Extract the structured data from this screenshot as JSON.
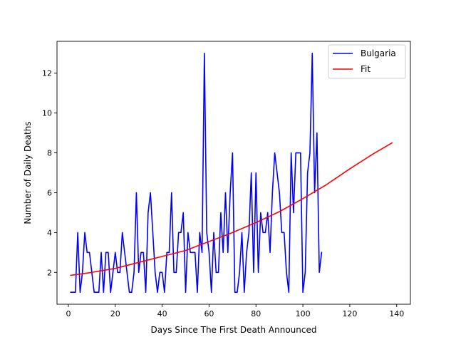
{
  "chart_data": {
    "type": "line",
    "title": "",
    "xlabel": "Days Since The First Death Announced",
    "ylabel": "Number of Daily Deaths",
    "xlim": [
      -4.85,
      145.85
    ],
    "ylim": [
      0.4,
      13.6
    ],
    "xticks": [
      0,
      20,
      40,
      60,
      80,
      100,
      120,
      140
    ],
    "yticks": [
      2,
      4,
      6,
      8,
      10,
      12
    ],
    "grid": false,
    "legend_position": "top-right",
    "series": [
      {
        "name": "Bulgaria",
        "color": "#0000ff",
        "x": [
          1,
          2,
          3,
          4,
          5,
          6,
          7,
          8,
          9,
          10,
          11,
          12,
          13,
          14,
          15,
          16,
          17,
          18,
          19,
          20,
          21,
          22,
          23,
          24,
          25,
          26,
          27,
          28,
          29,
          30,
          31,
          32,
          33,
          34,
          35,
          36,
          37,
          38,
          39,
          40,
          41,
          42,
          43,
          44,
          45,
          46,
          47,
          48,
          49,
          50,
          51,
          52,
          53,
          54,
          55,
          56,
          57,
          58,
          59,
          60,
          61,
          62,
          63,
          64,
          65,
          66,
          67,
          68,
          69,
          70,
          71,
          72,
          73,
          74,
          75,
          76,
          77,
          78,
          79,
          80,
          81,
          82,
          83,
          84,
          85,
          86,
          87,
          88,
          89,
          90,
          91,
          92,
          93,
          94,
          95,
          96,
          97,
          98,
          99,
          100,
          101,
          102,
          103,
          104,
          105,
          106,
          107,
          108
        ],
        "y": [
          1,
          1,
          1,
          4,
          1,
          2,
          4,
          3,
          3,
          2,
          1,
          1,
          1,
          3,
          1,
          3,
          3,
          1,
          2,
          3,
          2,
          2,
          4,
          3,
          2,
          1,
          1,
          2,
          6,
          2,
          3,
          3,
          1,
          5,
          6,
          4,
          2,
          1,
          2,
          2,
          1,
          3,
          3,
          6,
          2,
          2,
          4,
          4,
          5,
          1,
          4,
          3,
          3,
          3,
          1,
          4,
          3,
          13,
          4,
          3,
          1,
          4,
          2,
          2,
          5,
          3,
          6,
          3,
          6,
          8,
          1,
          1,
          2,
          4,
          1,
          3,
          4,
          7,
          2,
          7,
          2,
          5,
          4,
          4,
          5,
          3,
          6,
          8,
          7,
          6,
          4,
          4,
          2,
          1,
          8,
          5,
          8,
          8,
          8,
          1,
          2,
          7,
          8,
          13,
          6,
          9,
          2,
          3
        ]
      },
      {
        "name": "Fit",
        "color": "#ff0000",
        "model": "exponential",
        "x": [
          1,
          10,
          20,
          30,
          40,
          50,
          60,
          70,
          80,
          90,
          100,
          110,
          120,
          130,
          138
        ],
        "y": [
          1.85,
          2.0,
          2.2,
          2.5,
          2.8,
          3.1,
          3.55,
          4.0,
          4.5,
          5.05,
          5.7,
          6.4,
          7.2,
          7.95,
          8.5
        ]
      }
    ]
  }
}
